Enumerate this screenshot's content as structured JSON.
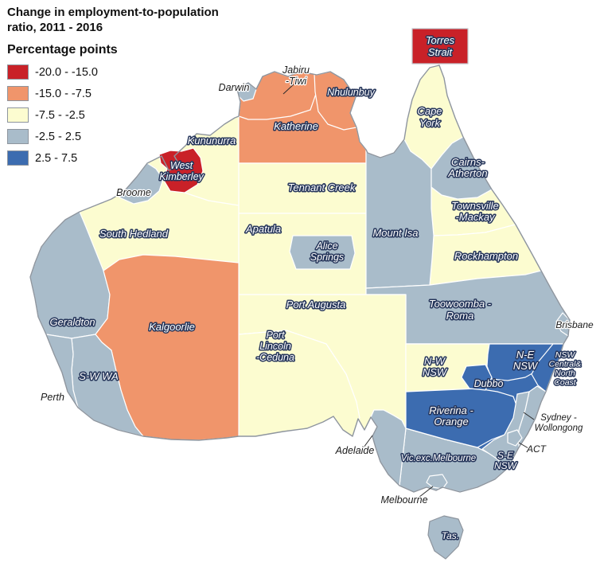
{
  "title": {
    "line1": "Change in employment-to-population",
    "line2": "ratio, 2011 - 2016"
  },
  "legend": {
    "heading": "Percentage points",
    "items": [
      {
        "label": "-20.0 - -15.0",
        "color": "#c92128"
      },
      {
        "label": "-15.0 - -7.5",
        "color": "#f0956b"
      },
      {
        "label": "-7.5 - -2.5",
        "color": "#fcfcd0"
      },
      {
        "label": "-2.5 - 2.5",
        "color": "#a9bcca"
      },
      {
        "label": "2.5 - 7.5",
        "color": "#3c6cb0"
      }
    ]
  },
  "map": {
    "regions": [
      {
        "id": "south-hedland",
        "bucket": 2
      },
      {
        "id": "katherine",
        "bucket": 1
      },
      {
        "id": "tennant-creek",
        "bucket": 2
      },
      {
        "id": "apatula",
        "bucket": 2
      },
      {
        "id": "cape-york",
        "bucket": 2
      },
      {
        "id": "townsville-mackay",
        "bucket": 2
      },
      {
        "id": "rockhampton",
        "bucket": 2
      },
      {
        "id": "mount-isa",
        "bucket": 3
      },
      {
        "id": "cairns-atherton",
        "bucket": 3
      },
      {
        "id": "toowoomba-roma",
        "bucket": 3
      },
      {
        "id": "port-augusta",
        "bucket": 2
      },
      {
        "id": "port-lincoln-ceduna",
        "bucket": 2
      },
      {
        "id": "vic-exc-melbourne",
        "bucket": 3
      },
      {
        "id": "nsw-base",
        "bucket": 4
      },
      {
        "id": "nw-nsw",
        "bucket": 2
      },
      {
        "id": "ne-nsw",
        "bucket": 4
      },
      {
        "id": "nsw-central-north-coast",
        "bucket": 4
      },
      {
        "id": "riverina-orange",
        "bucket": 4
      },
      {
        "id": "dubbo",
        "bucket": 4
      },
      {
        "id": "sydney-wollongong",
        "bucket": 3
      },
      {
        "id": "se-nsw",
        "bucket": 3
      },
      {
        "id": "act",
        "bucket": 3
      },
      {
        "id": "adelaide",
        "bucket": 3
      },
      {
        "id": "jabiru-tiwi",
        "bucket": 1
      },
      {
        "id": "nhulunbuy",
        "bucket": 1
      },
      {
        "id": "darwin",
        "bucket": 3
      },
      {
        "id": "alice-springs",
        "bucket": 3
      },
      {
        "id": "west-kimberley",
        "bucket": 0
      },
      {
        "id": "broome",
        "bucket": 3
      },
      {
        "id": "geraldton",
        "bucket": 3
      },
      {
        "id": "kalgoorlie",
        "bucket": 1
      },
      {
        "id": "sw-wa",
        "bucket": 3
      },
      {
        "id": "perth",
        "bucket": 3
      },
      {
        "id": "brisbane",
        "bucket": 3
      },
      {
        "id": "melbourne",
        "bucket": 3
      },
      {
        "id": "tasmania",
        "bucket": 3
      },
      {
        "id": "torres-strait",
        "bucket": 0
      }
    ],
    "labels": [
      {
        "id": "torres-strait",
        "lines": [
          "Torres",
          "Strait"
        ],
        "style": "light"
      },
      {
        "id": "jabiru-tiwi",
        "lines": [
          "Jabiru",
          "-Tiwi"
        ],
        "style": "dark"
      },
      {
        "id": "darwin",
        "lines": [
          "Darwin"
        ],
        "style": "dark"
      },
      {
        "id": "nhulunbuy",
        "lines": [
          "Nhulunbuy"
        ],
        "style": "light"
      },
      {
        "id": "cape-york",
        "lines": [
          "Cape",
          "York"
        ],
        "style": "light"
      },
      {
        "id": "kununurra",
        "lines": [
          "Kununurra"
        ],
        "style": "light"
      },
      {
        "id": "katherine",
        "lines": [
          "Katherine"
        ],
        "style": "light"
      },
      {
        "id": "cairns-atherton",
        "lines": [
          "Cairns-",
          "Atherton"
        ],
        "style": "light"
      },
      {
        "id": "west-kimberley",
        "lines": [
          "West",
          "Kimberley"
        ],
        "style": "light"
      },
      {
        "id": "broome",
        "lines": [
          "Broome"
        ],
        "style": "dark"
      },
      {
        "id": "tennant-creek",
        "lines": [
          "Tennant Creek"
        ],
        "style": "light"
      },
      {
        "id": "townsville-mackay",
        "lines": [
          "Townsville",
          "-Mackay"
        ],
        "style": "light"
      },
      {
        "id": "south-hedland",
        "lines": [
          "South Hedland"
        ],
        "style": "light"
      },
      {
        "id": "apatula",
        "lines": [
          "Apatula"
        ],
        "style": "light"
      },
      {
        "id": "alice-springs",
        "lines": [
          "Alice",
          "Springs"
        ],
        "style": "light"
      },
      {
        "id": "mount-isa",
        "lines": [
          "Mount Isa"
        ],
        "style": "light"
      },
      {
        "id": "rockhampton",
        "lines": [
          "Rockhampton"
        ],
        "style": "light"
      },
      {
        "id": "geraldton",
        "lines": [
          "Geraldton"
        ],
        "style": "light"
      },
      {
        "id": "kalgoorlie",
        "lines": [
          "Kalgoorlie"
        ],
        "style": "light"
      },
      {
        "id": "port-augusta",
        "lines": [
          "Port Augusta"
        ],
        "style": "light"
      },
      {
        "id": "toowoomba-roma",
        "lines": [
          "Toowoomba -",
          "Roma"
        ],
        "style": "light"
      },
      {
        "id": "brisbane",
        "lines": [
          "Brisbane"
        ],
        "style": "dark"
      },
      {
        "id": "port-lincoln-ceduna",
        "lines": [
          "Port",
          "Lincoln",
          "-Ceduna"
        ],
        "style": "light"
      },
      {
        "id": "nw-nsw",
        "lines": [
          "N-W",
          "NSW"
        ],
        "style": "light"
      },
      {
        "id": "ne-nsw",
        "lines": [
          "N-E",
          "NSW"
        ],
        "style": "light"
      },
      {
        "id": "nsw-central-north-coast",
        "lines": [
          "NSW",
          "Central&",
          "North",
          "Coast"
        ],
        "style": "light"
      },
      {
        "id": "sw-wa",
        "lines": [
          "S-W WA"
        ],
        "style": "light"
      },
      {
        "id": "perth",
        "lines": [
          "Perth"
        ],
        "style": "dark"
      },
      {
        "id": "dubbo",
        "lines": [
          "Dubbo"
        ],
        "style": "light"
      },
      {
        "id": "riverina-orange",
        "lines": [
          "Riverina -",
          "Orange"
        ],
        "style": "light"
      },
      {
        "id": "sydney-wollongong",
        "lines": [
          "Sydney -",
          "Wollongong"
        ],
        "style": "dark"
      },
      {
        "id": "adelaide",
        "lines": [
          "Adelaide"
        ],
        "style": "dark"
      },
      {
        "id": "vic-exc-melbourne",
        "lines": [
          "Vic.exc.Melbourne"
        ],
        "style": "light"
      },
      {
        "id": "act",
        "lines": [
          "ACT"
        ],
        "style": "dark"
      },
      {
        "id": "se-nsw",
        "lines": [
          "S-E",
          "NSW"
        ],
        "style": "light"
      },
      {
        "id": "melbourne",
        "lines": [
          "Melbourne"
        ],
        "style": "dark"
      },
      {
        "id": "tas",
        "lines": [
          "Tas."
        ],
        "style": "light"
      }
    ]
  }
}
